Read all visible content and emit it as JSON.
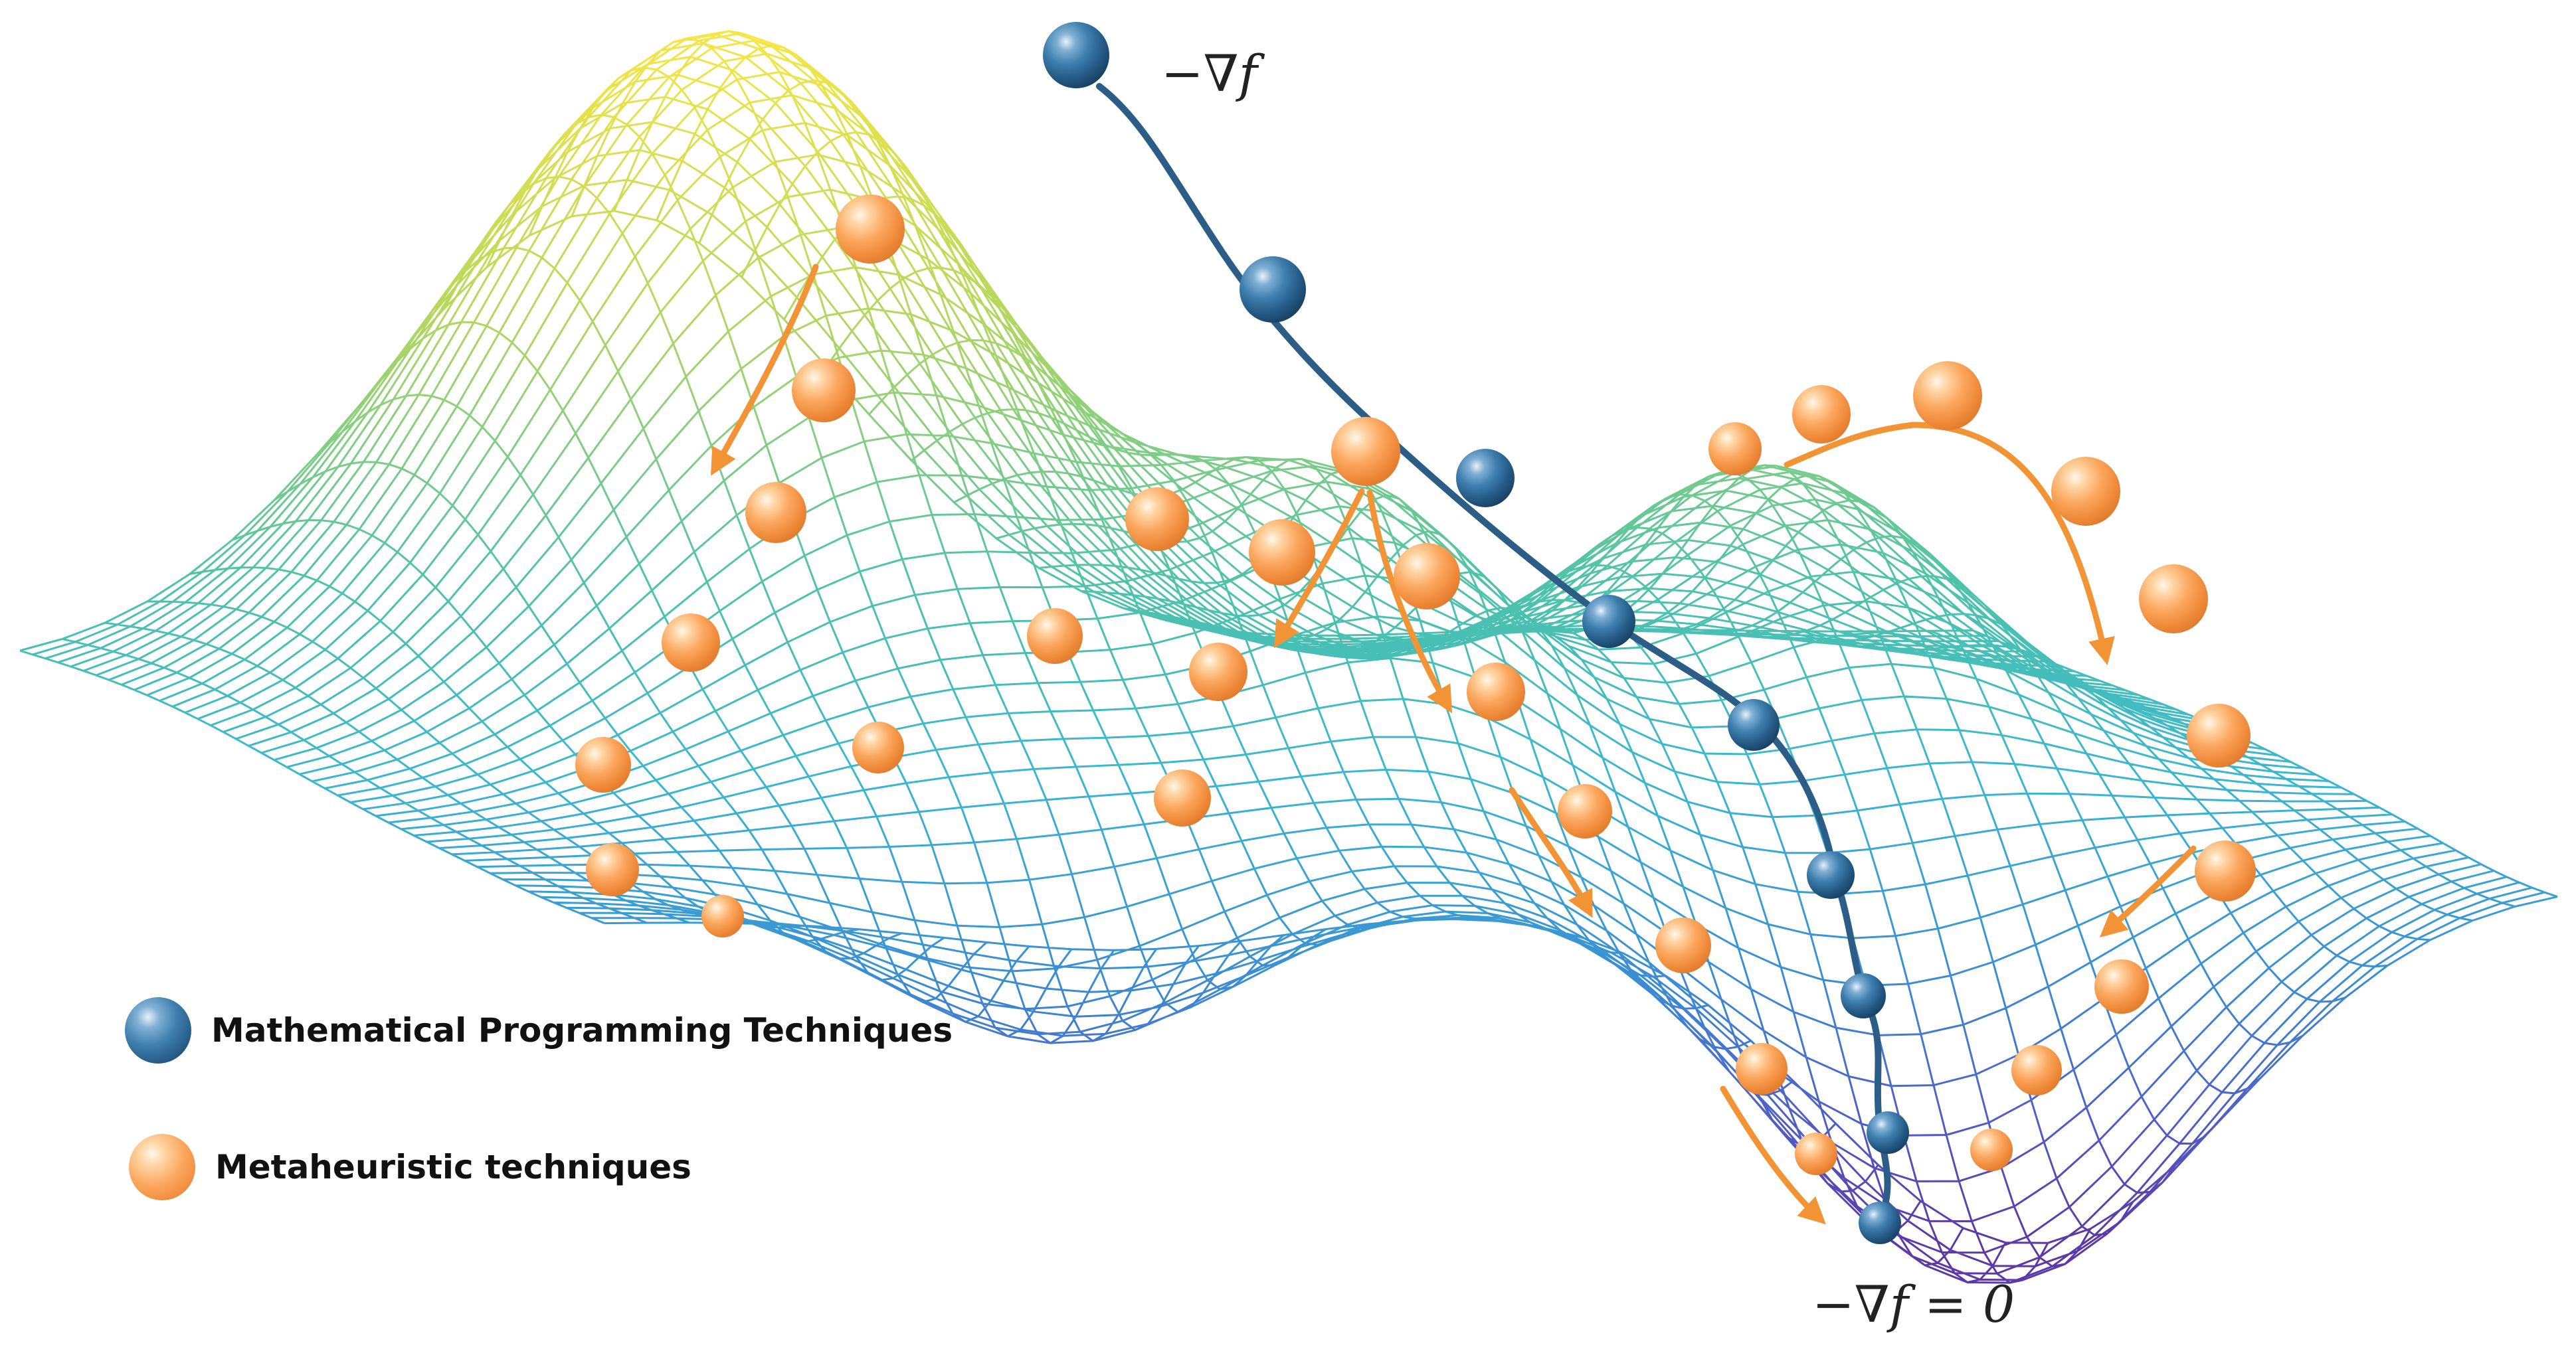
{
  "legend": {
    "math_label": "Mathematical Programming Techniques",
    "meta_label": "Metaheuristic techniques"
  },
  "annotations": {
    "gradient_top": "−∇f",
    "gradient_bottom": "−∇f = 0"
  },
  "colors": {
    "blue_ball": "#2f6896",
    "orange_ball": "#f59a4b",
    "arrow": "#f29435",
    "path": "#2c5d86"
  },
  "icons": {
    "blue_ball": "blue-sphere-icon",
    "orange_ball": "orange-sphere-icon"
  }
}
